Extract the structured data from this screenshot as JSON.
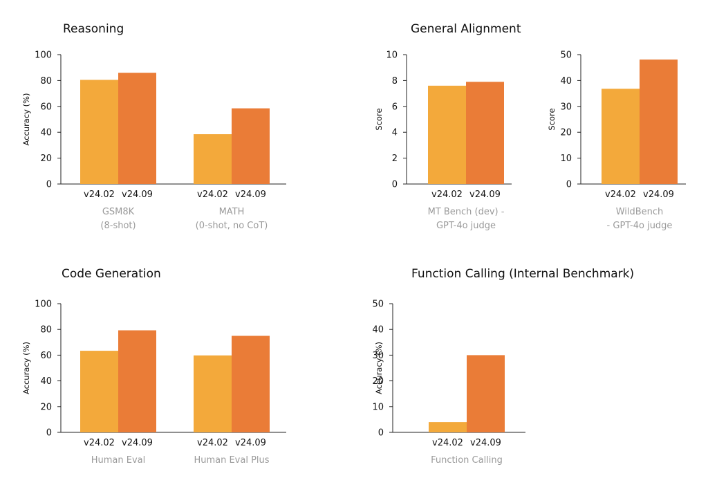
{
  "colors": {
    "v24.02": "#F3A93B",
    "v24.09": "#EA7C37"
  },
  "sections": [
    {
      "title": "Reasoning"
    },
    {
      "title": "General Alignment"
    },
    {
      "title": "Code Generation"
    },
    {
      "title": "Function Calling (Internal Benchmark)"
    }
  ],
  "chart_data": [
    {
      "type": "bar",
      "section": "Reasoning",
      "ylabel": "Accuracy (%)",
      "ylim": [
        0,
        100
      ],
      "yticks": [
        0,
        20,
        40,
        60,
        80,
        100
      ],
      "series_names": [
        "v24.02",
        "v24.09"
      ],
      "groups": [
        {
          "name": [
            "GSM8K",
            "(8-shot)"
          ],
          "values": [
            80.5,
            86
          ]
        },
        {
          "name": [
            "MATH",
            "(0-shot, no CoT)"
          ],
          "values": [
            38.5,
            58.5
          ]
        }
      ]
    },
    {
      "type": "bar",
      "section": "General Alignment",
      "ylabel": "Score",
      "ylim": [
        0,
        10
      ],
      "yticks": [
        0,
        2,
        4,
        6,
        8,
        10
      ],
      "series_names": [
        "v24.02",
        "v24.09"
      ],
      "groups": [
        {
          "name": [
            "MT Bench (dev) -",
            "GPT-4o judge"
          ],
          "values": [
            7.6,
            7.9
          ]
        }
      ]
    },
    {
      "type": "bar",
      "section": "General Alignment",
      "ylabel": "Score",
      "ylim": [
        0,
        50
      ],
      "yticks": [
        0,
        10,
        20,
        30,
        40,
        50
      ],
      "series_names": [
        "v24.02",
        "v24.09"
      ],
      "groups": [
        {
          "name": [
            "WildBench",
            "- GPT-4o judge"
          ],
          "values": [
            36.8,
            48.1
          ]
        }
      ]
    },
    {
      "type": "bar",
      "section": "Code Generation",
      "ylabel": "Accuracy (%)",
      "ylim": [
        0,
        100
      ],
      "yticks": [
        0,
        20,
        40,
        60,
        80,
        100
      ],
      "series_names": [
        "v24.02",
        "v24.09"
      ],
      "groups": [
        {
          "name": [
            "Human Eval"
          ],
          "values": [
            63.4,
            79.3
          ]
        },
        {
          "name": [
            "Human Eval Plus"
          ],
          "values": [
            59.8,
            75
          ]
        }
      ]
    },
    {
      "type": "bar",
      "section": "Function Calling (Internal Benchmark)",
      "ylabel": "Accuracy (%)",
      "ylim": [
        0,
        50
      ],
      "yticks": [
        0,
        10,
        20,
        30,
        40,
        50
      ],
      "series_names": [
        "v24.02",
        "v24.09"
      ],
      "groups": [
        {
          "name": [
            "Function Calling"
          ],
          "values": [
            4,
            30
          ]
        }
      ]
    }
  ]
}
